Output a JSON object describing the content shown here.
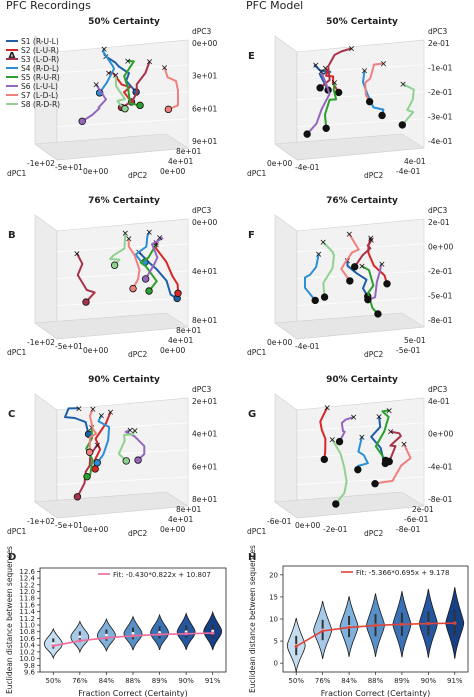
{
  "header": {
    "left": "PFC Recordings",
    "right": "PFC Model"
  },
  "legend": [
    {
      "name": "S1 (R-U-L)",
      "color": "#1f5fa8"
    },
    {
      "name": "S2 (L-U-R)",
      "color": "#d62728"
    },
    {
      "name": "S3 (L-D-R)",
      "color": "#a8324a"
    },
    {
      "name": "S4 (R-D-L)",
      "color": "#2a8fd6"
    },
    {
      "name": "S5 (R-U-R)",
      "color": "#2ca02c"
    },
    {
      "name": "S6 (L-U-L)",
      "color": "#9467bd"
    },
    {
      "name": "S7 (L-D-L)",
      "color": "#f08080"
    },
    {
      "name": "S8 (R-D-R)",
      "color": "#8fd18f"
    }
  ],
  "panels3d": [
    {
      "letter": "A",
      "title": "50% Certainty",
      "axis_labels": {
        "x": "dPC1",
        "y": "dPC2",
        "z": "dPC3"
      },
      "x_ticks": [
        "-1e+02",
        "-5e+01",
        "0e+00"
      ],
      "y_ticks": [
        "0e+00",
        "4e+01",
        "8e+01"
      ],
      "z_ticks": [
        "0e+00",
        "3e+01",
        "6e+01",
        "9e+01"
      ]
    },
    {
      "letter": "E",
      "title": "50% Certainty",
      "axis_labels": {
        "x": "dPC1",
        "y": "dPC2",
        "z": "dPC3"
      },
      "x_ticks": [
        "0e+00",
        "-4e-01"
      ],
      "y_ticks": [
        "-4e-01",
        "4e-01"
      ],
      "z_ticks": [
        "2e-01",
        "-1e-01",
        "-2e-01",
        "-3e-01",
        "-4e-01"
      ]
    },
    {
      "letter": "B",
      "title": "76% Certainty",
      "axis_labels": {
        "x": "dPC1",
        "y": "dPC2",
        "z": "dPC3"
      },
      "x_ticks": [
        "-1e+02",
        "-5e+01",
        "0e+00"
      ],
      "y_ticks": [
        "0e+00",
        "4e+01",
        "8e+01"
      ],
      "z_ticks": [
        "0e+00",
        "4e+01",
        "8e+01"
      ]
    },
    {
      "letter": "F",
      "title": "76% Certainty",
      "axis_labels": {
        "x": "dPC1",
        "y": "dPC2",
        "z": "dPC3"
      },
      "x_ticks": [
        "0e+00",
        "-4e-01"
      ],
      "y_ticks": [
        "-5e-01",
        "5e-01"
      ],
      "z_ticks": [
        "2e-01",
        "0e+00",
        "-2e-01",
        "-5e-01",
        "-8e-01"
      ]
    },
    {
      "letter": "C",
      "title": "90% Certainty",
      "axis_labels": {
        "x": "dPC1",
        "y": "dPC2",
        "z": "dPC3"
      },
      "x_ticks": [
        "-1e+02",
        "-5e+01",
        "0e+00"
      ],
      "y_ticks": [
        "0e+00",
        "4e+01",
        "8e+01"
      ],
      "z_ticks": [
        "2e+01",
        "4e+01",
        "6e+01",
        "8e+01"
      ]
    },
    {
      "letter": "G",
      "title": "90% Certainty",
      "axis_labels": {
        "x": "dPC1",
        "y": "dPC2",
        "z": "dPC3"
      },
      "x_ticks": [
        "-6e-01",
        "0e+00",
        "-2e-01"
      ],
      "y_ticks": [
        "-8e-01",
        "-6e-01",
        "2e-01"
      ],
      "z_ticks": [
        "4e-01",
        "0e+00",
        "-4e-01",
        "-8e-01"
      ]
    }
  ],
  "chart_data": [
    {
      "type": "violin",
      "panel": "D",
      "xlabel": "Fraction Correct (Certainty)",
      "ylabel": "Euclidean distance between sequences",
      "categories": [
        "50%",
        "76%",
        "84%",
        "88%",
        "89%",
        "90%",
        "91%"
      ],
      "y_ticks": [
        "9.6",
        "9.8",
        "10.0",
        "10.2",
        "10.4",
        "10.6",
        "10.8",
        "11.0",
        "11.2",
        "11.4",
        "11.6",
        "11.8",
        "12.0",
        "12.2",
        "12.4",
        "12.6"
      ],
      "ylim": [
        9.6,
        12.7
      ],
      "medians": [
        10.45,
        10.65,
        10.7,
        10.75,
        10.78,
        10.8,
        10.82
      ],
      "fit_label": "Fit: -0.430*0.822x + 10.807",
      "fit_values": [
        10.38,
        10.53,
        10.62,
        10.68,
        10.72,
        10.74,
        10.76
      ],
      "fill_colors": [
        "#c4ddf0",
        "#a6c9e8",
        "#7fb1dc",
        "#5791c8",
        "#3a72b6",
        "#2457a0",
        "#163f86"
      ]
    },
    {
      "type": "violin",
      "panel": "H",
      "xlabel": "Fraction Correct (Certainty)",
      "ylabel": "Euclidean distance between sequences",
      "categories": [
        "50%",
        "76%",
        "84%",
        "88%",
        "89%",
        "90%",
        "91%"
      ],
      "y_ticks": [
        "0",
        "5",
        "10",
        "15",
        "20"
      ],
      "ylim": [
        -2,
        22
      ],
      "medians": [
        4.0,
        7.5,
        8.3,
        8.6,
        8.8,
        9.0,
        9.1
      ],
      "fit_label": "Fit: -5.366*0.695x + 9.178",
      "fit_values": [
        3.8,
        7.3,
        8.1,
        8.55,
        8.8,
        8.95,
        9.05
      ],
      "fill_colors": [
        "#c4ddf0",
        "#a6c9e8",
        "#7fb1dc",
        "#5791c8",
        "#3a72b6",
        "#2457a0",
        "#163f86"
      ]
    }
  ]
}
